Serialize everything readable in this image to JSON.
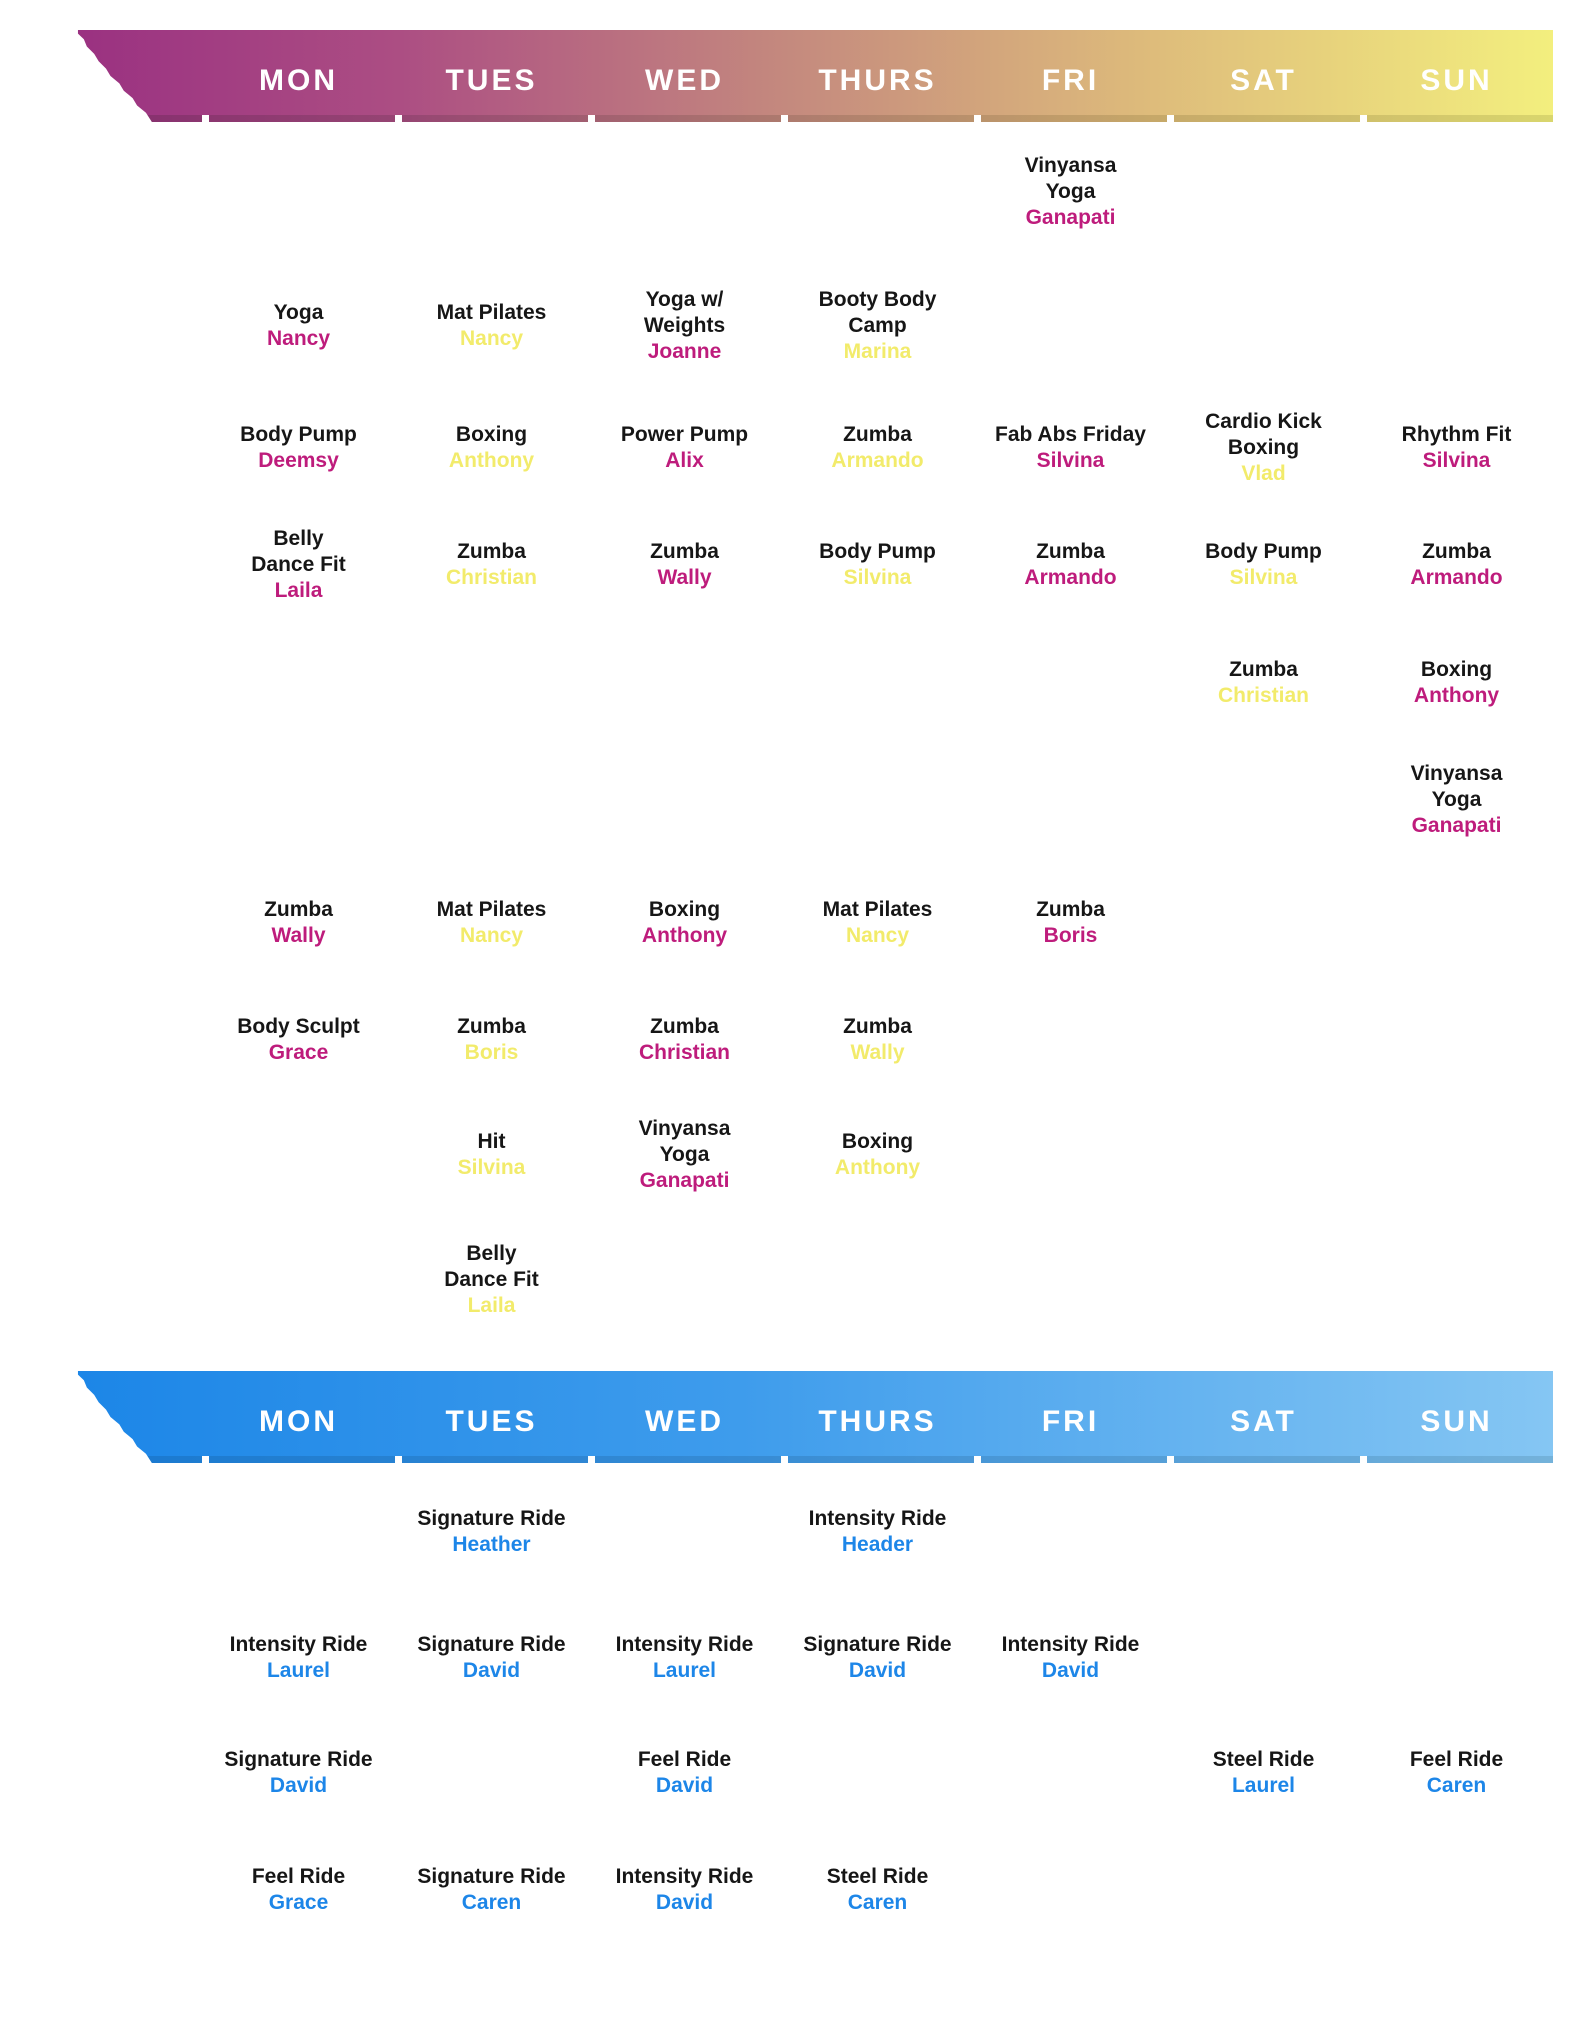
{
  "days": [
    "MON",
    "TUES",
    "WED",
    "THURS",
    "FRI",
    "SAT",
    "SUN"
  ],
  "colors": {
    "magenta": "#be1c7c",
    "yellow": "#f2eb6b",
    "blue": "#1d86e8",
    "warm_gradient_start": "#9a3181",
    "warm_gradient_end": "#f3ef7e",
    "cool_gradient_start": "#1c86e7",
    "cool_gradient_end": "#85c6f3",
    "day_label": "#ffffff",
    "class_title": "#161616"
  },
  "sections": [
    {
      "id": "group-fitness",
      "theme": "warm",
      "rows": [
        {
          "cells": [
            null,
            null,
            null,
            null,
            {
              "title": [
                "Vinyansa",
                "Yoga"
              ],
              "instructor": "Ganapati",
              "color": "magenta"
            },
            null,
            null
          ]
        },
        {
          "cells": [
            {
              "title": [
                "Yoga"
              ],
              "instructor": "Nancy",
              "color": "magenta"
            },
            {
              "title": [
                "Mat Pilates"
              ],
              "instructor": "Nancy",
              "color": "yellow"
            },
            {
              "title": [
                "Yoga w/",
                "Weights"
              ],
              "instructor": "Joanne",
              "color": "magenta"
            },
            {
              "title": [
                "Booty Body",
                "Camp"
              ],
              "instructor": "Marina",
              "color": "yellow"
            },
            null,
            null,
            null
          ]
        },
        {
          "cells": [
            {
              "title": [
                "Body Pump"
              ],
              "instructor": "Deemsy",
              "color": "magenta"
            },
            {
              "title": [
                "Boxing"
              ],
              "instructor": "Anthony",
              "color": "yellow"
            },
            {
              "title": [
                "Power Pump"
              ],
              "instructor": "Alix",
              "color": "magenta"
            },
            {
              "title": [
                "Zumba"
              ],
              "instructor": "Armando",
              "color": "yellow"
            },
            {
              "title": [
                "Fab Abs Friday"
              ],
              "instructor": "Silvina",
              "color": "magenta"
            },
            {
              "title": [
                "Cardio Kick",
                "Boxing"
              ],
              "instructor": "Vlad",
              "color": "yellow"
            },
            {
              "title": [
                "Rhythm Fit"
              ],
              "instructor": "Silvina",
              "color": "magenta"
            }
          ]
        },
        {
          "cells": [
            {
              "title": [
                "Belly",
                "Dance Fit"
              ],
              "instructor": "Laila",
              "color": "magenta"
            },
            {
              "title": [
                "Zumba"
              ],
              "instructor": "Christian",
              "color": "yellow"
            },
            {
              "title": [
                "Zumba"
              ],
              "instructor": "Wally",
              "color": "magenta"
            },
            {
              "title": [
                "Body Pump"
              ],
              "instructor": "Silvina",
              "color": "yellow"
            },
            {
              "title": [
                "Zumba"
              ],
              "instructor": "Armando",
              "color": "magenta"
            },
            {
              "title": [
                "Body Pump"
              ],
              "instructor": "Silvina",
              "color": "yellow"
            },
            {
              "title": [
                "Zumba"
              ],
              "instructor": "Armando",
              "color": "magenta"
            }
          ]
        },
        {
          "cells": [
            null,
            null,
            null,
            null,
            null,
            {
              "title": [
                "Zumba"
              ],
              "instructor": "Christian",
              "color": "yellow"
            },
            {
              "title": [
                "Boxing"
              ],
              "instructor": "Anthony",
              "color": "magenta"
            }
          ]
        },
        {
          "cells": [
            null,
            null,
            null,
            null,
            null,
            null,
            {
              "title": [
                "Vinyansa",
                "Yoga"
              ],
              "instructor": "Ganapati",
              "color": "magenta"
            }
          ]
        },
        {
          "cells": [
            {
              "title": [
                "Zumba"
              ],
              "instructor": "Wally",
              "color": "magenta"
            },
            {
              "title": [
                "Mat Pilates"
              ],
              "instructor": "Nancy",
              "color": "yellow"
            },
            {
              "title": [
                "Boxing"
              ],
              "instructor": "Anthony",
              "color": "magenta"
            },
            {
              "title": [
                "Mat Pilates"
              ],
              "instructor": "Nancy",
              "color": "yellow"
            },
            {
              "title": [
                "Zumba"
              ],
              "instructor": "Boris",
              "color": "magenta"
            },
            null,
            null
          ]
        },
        {
          "cells": [
            {
              "title": [
                "Body Sculpt"
              ],
              "instructor": "Grace",
              "color": "magenta"
            },
            {
              "title": [
                "Zumba"
              ],
              "instructor": "Boris",
              "color": "yellow"
            },
            {
              "title": [
                "Zumba"
              ],
              "instructor": "Christian",
              "color": "magenta"
            },
            {
              "title": [
                "Zumba"
              ],
              "instructor": "Wally",
              "color": "yellow"
            },
            null,
            null,
            null
          ]
        },
        {
          "cells": [
            null,
            {
              "title": [
                "Hit"
              ],
              "instructor": "Silvina",
              "color": "yellow"
            },
            {
              "title": [
                "Vinyansa",
                "Yoga"
              ],
              "instructor": "Ganapati",
              "color": "magenta"
            },
            {
              "title": [
                "Boxing"
              ],
              "instructor": "Anthony",
              "color": "yellow"
            },
            null,
            null,
            null
          ]
        },
        {
          "cells": [
            null,
            {
              "title": [
                "Belly",
                "Dance Fit"
              ],
              "instructor": "Laila",
              "color": "yellow"
            },
            null,
            null,
            null,
            null,
            null
          ]
        }
      ]
    },
    {
      "id": "cycling",
      "theme": "cool",
      "rows": [
        {
          "cells": [
            null,
            {
              "title": [
                "Signature Ride"
              ],
              "instructor": "Heather",
              "color": "blue"
            },
            null,
            {
              "title": [
                "Intensity Ride"
              ],
              "instructor": "Header",
              "color": "blue"
            },
            null,
            null,
            null
          ]
        },
        {
          "cells": [
            {
              "title": [
                "Intensity Ride"
              ],
              "instructor": "Laurel",
              "color": "blue"
            },
            {
              "title": [
                "Signature Ride"
              ],
              "instructor": "David",
              "color": "blue"
            },
            {
              "title": [
                "Intensity Ride"
              ],
              "instructor": "Laurel",
              "color": "blue"
            },
            {
              "title": [
                "Signature Ride"
              ],
              "instructor": "David",
              "color": "blue"
            },
            {
              "title": [
                "Intensity Ride"
              ],
              "instructor": "David",
              "color": "blue"
            },
            null,
            null
          ]
        },
        {
          "cells": [
            {
              "title": [
                "Signature Ride"
              ],
              "instructor": "David",
              "color": "blue"
            },
            null,
            {
              "title": [
                "Feel Ride"
              ],
              "instructor": "David",
              "color": "blue"
            },
            null,
            null,
            {
              "title": [
                "Steel Ride"
              ],
              "instructor": "Laurel",
              "color": "blue"
            },
            {
              "title": [
                "Feel Ride"
              ],
              "instructor": "Caren",
              "color": "blue"
            }
          ]
        },
        {
          "cells": [
            {
              "title": [
                "Feel Ride"
              ],
              "instructor": "Grace",
              "color": "blue"
            },
            {
              "title": [
                "Signature Ride"
              ],
              "instructor": "Caren",
              "color": "blue"
            },
            {
              "title": [
                "Intensity Ride"
              ],
              "instructor": "David",
              "color": "blue"
            },
            {
              "title": [
                "Steel Ride"
              ],
              "instructor": "Caren",
              "color": "blue"
            },
            null,
            null,
            null
          ]
        }
      ]
    }
  ]
}
